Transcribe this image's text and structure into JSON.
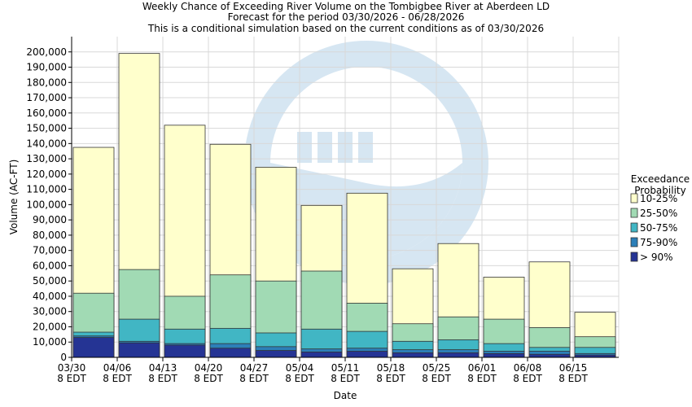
{
  "chart_data": {
    "type": "bar",
    "stacked": true,
    "title_lines": [
      "Weekly Chance of Exceeding River Volume on the Tombigbee River at Aberdeen LD",
      "Forecast for the period 03/30/2026 - 06/28/2026",
      "This is a conditional simulation based on the current conditions as of 03/30/2026"
    ],
    "xlabel": "Date",
    "ylabel": "Volume (AC-FT)",
    "ylim": [
      0,
      210000
    ],
    "y_ticks": [
      0,
      10000,
      20000,
      30000,
      40000,
      50000,
      60000,
      70000,
      80000,
      90000,
      100000,
      110000,
      120000,
      130000,
      140000,
      150000,
      160000,
      170000,
      180000,
      190000,
      200000
    ],
    "x_tick_labels": [
      [
        "03/30",
        "8 EDT"
      ],
      [
        "04/06",
        "8 EDT"
      ],
      [
        "04/13",
        "8 EDT"
      ],
      [
        "04/20",
        "8 EDT"
      ],
      [
        "04/27",
        "8 EDT"
      ],
      [
        "05/04",
        "8 EDT"
      ],
      [
        "05/11",
        "8 EDT"
      ],
      [
        "05/18",
        "8 EDT"
      ],
      [
        "05/25",
        "8 EDT"
      ],
      [
        "06/01",
        "8 EDT"
      ],
      [
        "06/08",
        "8 EDT"
      ],
      [
        "06/15",
        "8 EDT"
      ]
    ],
    "grid": true,
    "legend": {
      "title_lines": [
        "Exceedance",
        "Probability"
      ],
      "placement": "right"
    },
    "series": [
      {
        "name": "10-25%",
        "color": "#ffffcc",
        "top_values": [
          137500,
          199000,
          152000,
          139500,
          124500,
          99500,
          107500,
          58000,
          74500,
          52500,
          62500,
          29500
        ]
      },
      {
        "name": "25-50%",
        "color": "#a1dab4",
        "top_values": [
          42000,
          57500,
          40000,
          54000,
          50000,
          56500,
          35500,
          22000,
          26500,
          25000,
          19500,
          13500
        ]
      },
      {
        "name": "50-75%",
        "color": "#41b6c4",
        "top_values": [
          16500,
          25000,
          18500,
          19000,
          16000,
          18500,
          17000,
          10500,
          11500,
          9000,
          6500,
          6500
        ]
      },
      {
        "name": "75-90%",
        "color": "#2c7fb8",
        "top_values": [
          14000,
          10500,
          9000,
          9000,
          7000,
          5500,
          6000,
          5000,
          5000,
          4000,
          4000,
          2500
        ]
      },
      {
        "name": "> 90%",
        "color": "#253494",
        "top_values": [
          13000,
          9500,
          8000,
          6000,
          4500,
          3500,
          4000,
          3000,
          3000,
          2500,
          2000,
          1500
        ]
      }
    ]
  }
}
